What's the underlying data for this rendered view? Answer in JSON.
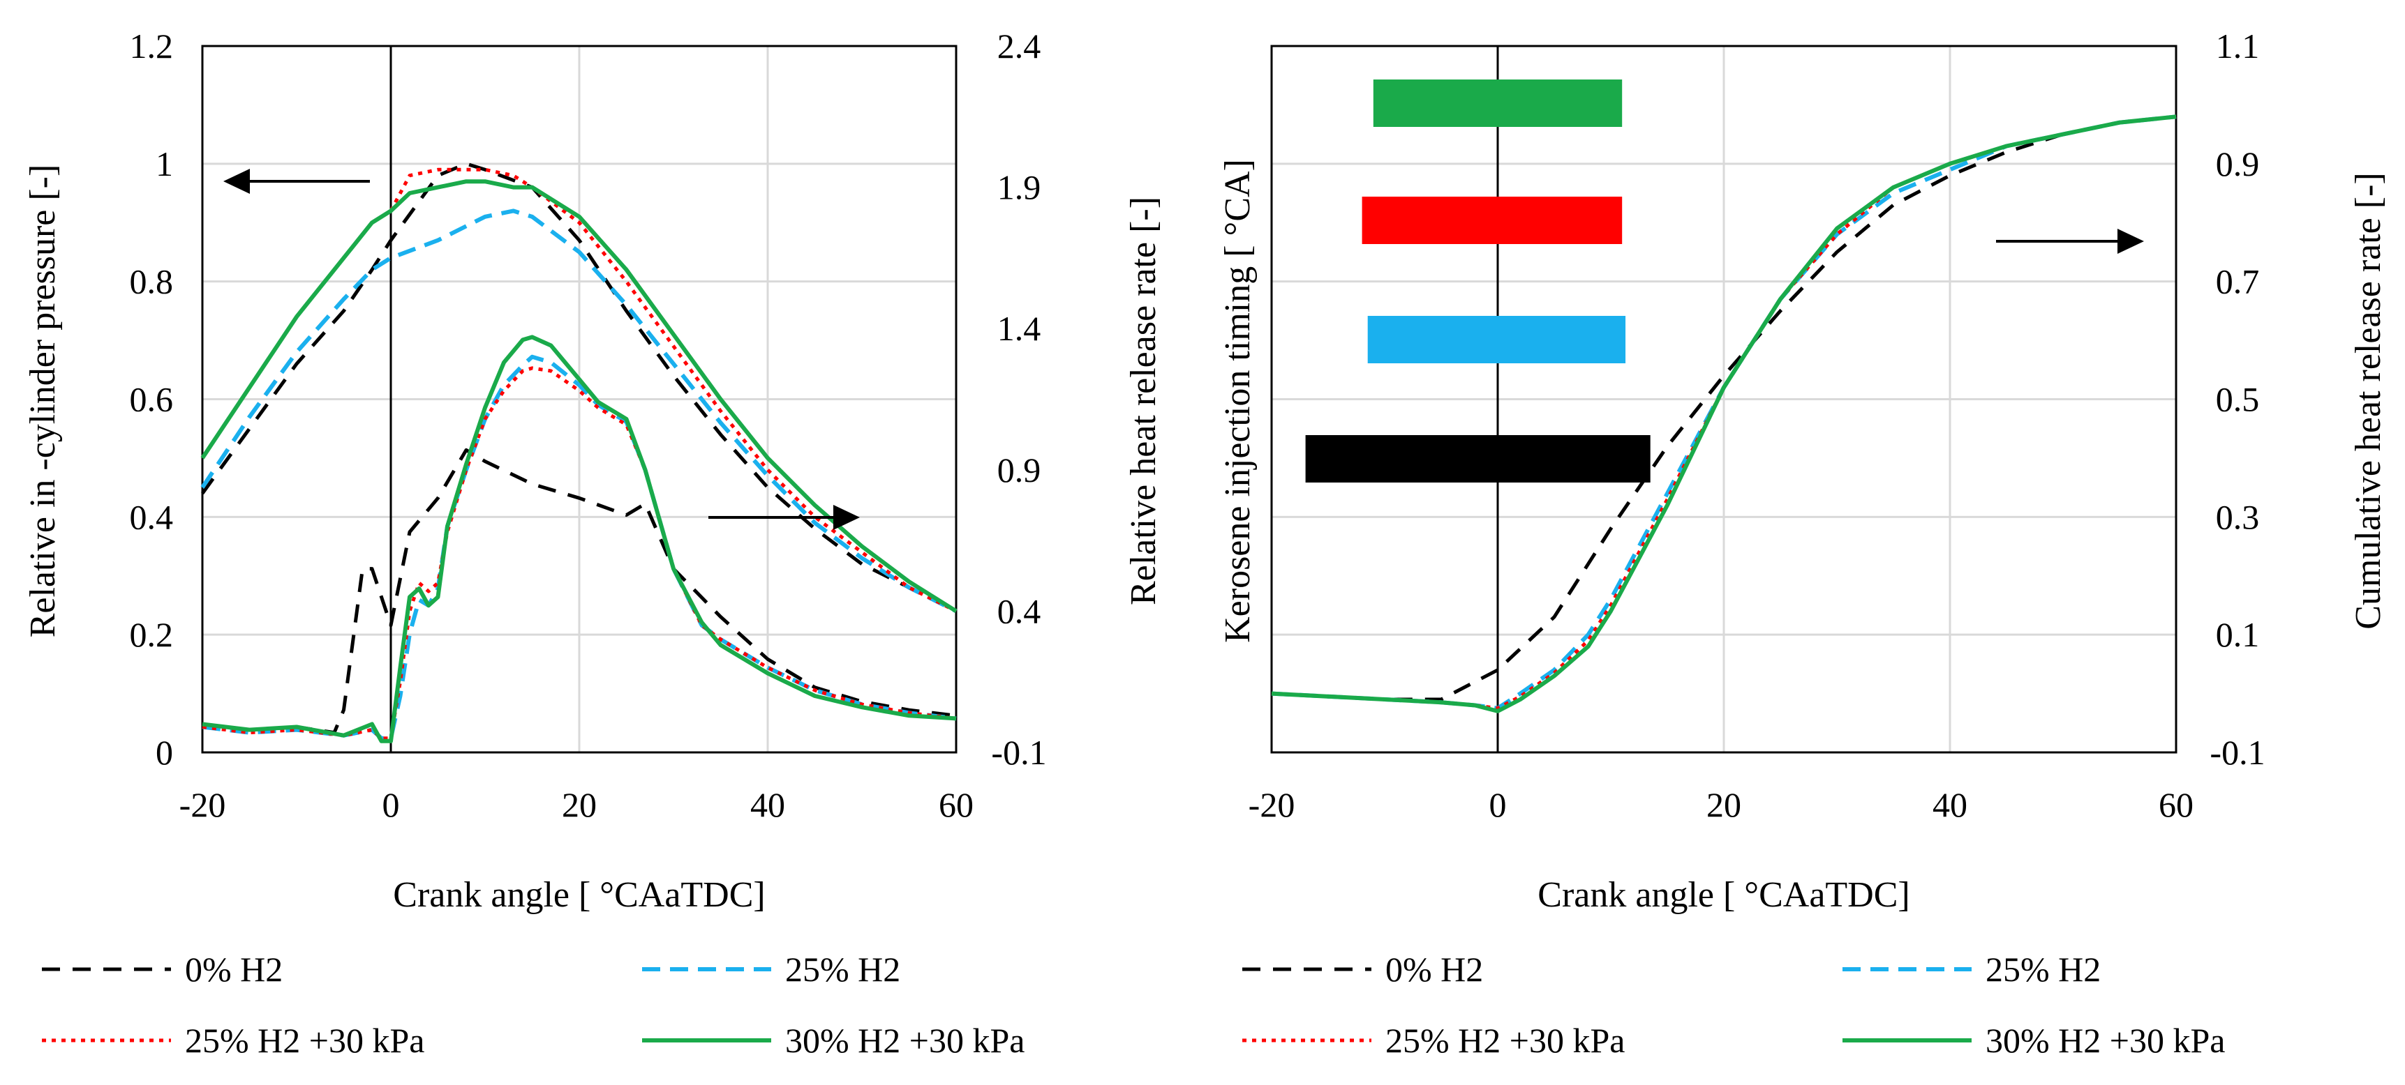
{
  "series_styles": [
    {
      "key": "h0",
      "color": "#000000",
      "dash": "26,18",
      "width": 5
    },
    {
      "key": "h25",
      "color": "#1ab0ee",
      "dash": "26,14",
      "width": 6
    },
    {
      "key": "h25p",
      "color": "#ff0000",
      "dash": "6,8",
      "width": 5
    },
    {
      "key": "h30p",
      "color": "#1aaa4a",
      "dash": "",
      "width": 6
    }
  ],
  "chart_data": [
    {
      "type": "line",
      "title": "",
      "xlabel": "Crank angle [ °CAaTDC]",
      "ylabel": "Relative in -cylinder pressure [-]",
      "y2label": "Relative heat release rate [-]",
      "xlim": [
        -20,
        60
      ],
      "ylim": [
        0,
        1.2
      ],
      "y2lim": [
        -0.1,
        2.4
      ],
      "x_ticks": [
        "-20",
        "0",
        "20",
        "40",
        "60"
      ],
      "y_ticks": [
        "0",
        "0.2",
        "0.4",
        "0.6",
        "0.8",
        "1",
        "1.2"
      ],
      "y2_ticks": [
        "-0.1",
        "0.4",
        "0.9",
        "1.4",
        "1.9",
        "2.4"
      ],
      "grid": true,
      "annotations": [
        "arrow pointing left to primary axis (pressure)",
        "arrow pointing right to secondary axis (heat release rate)"
      ],
      "legend": [
        {
          "label": "0% H2",
          "style": "h0"
        },
        {
          "label": "25% H2",
          "style": "h25"
        },
        {
          "label": "25% H2 +30 kPa",
          "style": "h25p"
        },
        {
          "label": "30% H2 +30 kPa",
          "style": "h30p"
        }
      ],
      "series": [
        {
          "name": "0% H2 pressure",
          "style": "h0",
          "axis": "left",
          "x": [
            -20,
            -15,
            -10,
            -5,
            -2,
            0,
            5,
            8,
            10,
            15,
            20,
            25,
            30,
            35,
            40,
            45,
            50,
            55,
            60
          ],
          "y": [
            0.44,
            0.55,
            0.66,
            0.75,
            0.82,
            0.87,
            0.98,
            1.0,
            0.99,
            0.96,
            0.87,
            0.75,
            0.64,
            0.54,
            0.45,
            0.38,
            0.32,
            0.28,
            0.24
          ]
        },
        {
          "name": "25% H2 pressure",
          "style": "h25",
          "axis": "left",
          "x": [
            -20,
            -15,
            -10,
            -5,
            -2,
            0,
            5,
            10,
            13,
            15,
            20,
            25,
            30,
            35,
            40,
            45,
            50,
            55,
            60
          ],
          "y": [
            0.45,
            0.57,
            0.68,
            0.77,
            0.82,
            0.84,
            0.87,
            0.91,
            0.92,
            0.91,
            0.85,
            0.76,
            0.66,
            0.56,
            0.47,
            0.39,
            0.33,
            0.28,
            0.24
          ]
        },
        {
          "name": "25% H2 +30 kPa pressure",
          "style": "h25p",
          "axis": "left",
          "x": [
            -20,
            -15,
            -10,
            -5,
            -2,
            0,
            2,
            5,
            10,
            13,
            15,
            20,
            25,
            30,
            35,
            40,
            45,
            50,
            55,
            60
          ],
          "y": [
            0.5,
            0.62,
            0.74,
            0.84,
            0.9,
            0.92,
            0.98,
            0.99,
            0.99,
            0.98,
            0.96,
            0.9,
            0.8,
            0.69,
            0.58,
            0.48,
            0.4,
            0.34,
            0.28,
            0.24
          ]
        },
        {
          "name": "30% H2 +30 kPa pressure",
          "style": "h30p",
          "axis": "left",
          "x": [
            -20,
            -15,
            -10,
            -5,
            -2,
            0,
            2,
            5,
            8,
            10,
            13,
            15,
            20,
            25,
            30,
            35,
            40,
            45,
            50,
            55,
            60
          ],
          "y": [
            0.5,
            0.62,
            0.74,
            0.84,
            0.9,
            0.92,
            0.95,
            0.96,
            0.97,
            0.97,
            0.96,
            0.96,
            0.91,
            0.82,
            0.71,
            0.6,
            0.5,
            0.42,
            0.35,
            0.29,
            0.24
          ]
        },
        {
          "name": "0% H2 HRR",
          "style": "h0",
          "axis": "right",
          "x": [
            -20,
            -15,
            -10,
            -6,
            -5,
            -3,
            -2,
            -1,
            0,
            2,
            5,
            8,
            10,
            15,
            20,
            25,
            27,
            30,
            35,
            40,
            45,
            50,
            55,
            60
          ],
          "y": [
            0.0,
            -0.02,
            -0.01,
            -0.03,
            0.05,
            0.55,
            0.55,
            0.45,
            0.35,
            0.68,
            0.8,
            0.97,
            0.93,
            0.85,
            0.8,
            0.74,
            0.78,
            0.55,
            0.38,
            0.23,
            0.13,
            0.08,
            0.05,
            0.03
          ]
        },
        {
          "name": "25% H2 HRR",
          "style": "h25",
          "axis": "right",
          "x": [
            -20,
            -15,
            -10,
            -5,
            -2,
            -1,
            0,
            1,
            2,
            3,
            4,
            5,
            6,
            8,
            10,
            12,
            14,
            15,
            17,
            20,
            22,
            25,
            27,
            30,
            33,
            35,
            40,
            45,
            50,
            55,
            60
          ],
          "y": [
            -0.01,
            -0.03,
            -0.02,
            -0.04,
            -0.02,
            -0.05,
            -0.05,
            0.1,
            0.32,
            0.44,
            0.42,
            0.48,
            0.7,
            0.9,
            1.08,
            1.2,
            1.27,
            1.3,
            1.28,
            1.2,
            1.13,
            1.07,
            0.9,
            0.55,
            0.35,
            0.3,
            0.2,
            0.12,
            0.07,
            0.04,
            0.02
          ]
        },
        {
          "name": "25% H2 +30 kPa HRR",
          "style": "h25p",
          "axis": "right",
          "x": [
            -20,
            -15,
            -10,
            -5,
            -2,
            -1,
            0,
            1,
            2,
            3,
            4,
            5,
            6,
            8,
            10,
            12,
            14,
            15,
            17,
            20,
            22,
            25,
            27,
            30,
            33,
            35,
            40,
            45,
            50,
            55,
            60
          ],
          "y": [
            -0.01,
            -0.03,
            -0.02,
            -0.04,
            -0.02,
            -0.05,
            -0.05,
            0.15,
            0.4,
            0.5,
            0.47,
            0.5,
            0.68,
            0.9,
            1.08,
            1.18,
            1.25,
            1.26,
            1.25,
            1.18,
            1.12,
            1.06,
            0.9,
            0.55,
            0.35,
            0.3,
            0.2,
            0.12,
            0.07,
            0.04,
            0.02
          ]
        },
        {
          "name": "30% H2 +30 kPa HRR",
          "style": "h30p",
          "axis": "right",
          "x": [
            -20,
            -15,
            -10,
            -5,
            -2,
            -1,
            0,
            1,
            2,
            3,
            4,
            5,
            6,
            8,
            10,
            12,
            14,
            15,
            17,
            20,
            22,
            25,
            27,
            30,
            33,
            35,
            40,
            45,
            50,
            55,
            60
          ],
          "y": [
            0.0,
            -0.02,
            -0.01,
            -0.04,
            0.0,
            -0.06,
            -0.06,
            0.2,
            0.45,
            0.48,
            0.42,
            0.45,
            0.7,
            0.92,
            1.12,
            1.28,
            1.36,
            1.37,
            1.34,
            1.22,
            1.14,
            1.08,
            0.9,
            0.55,
            0.36,
            0.28,
            0.18,
            0.1,
            0.06,
            0.03,
            0.02
          ]
        }
      ]
    },
    {
      "type": "line",
      "title": "",
      "xlabel": "Crank angle [ °CAaTDC]",
      "ylabel": "Kerosene injection timing [ °CA]",
      "y2label": "Cumulative heat release rate [-]",
      "xlim": [
        -20,
        60
      ],
      "y2lim": [
        -0.1,
        1.1
      ],
      "x_ticks": [
        "-20",
        "0",
        "20",
        "40",
        "60"
      ],
      "y2_ticks": [
        "-0.1",
        "0.1",
        "0.3",
        "0.5",
        "0.7",
        "0.9",
        "1.1"
      ],
      "grid": true,
      "annotations": [
        "arrow pointing right to secondary axis (cumulative heat release rate)"
      ],
      "injection_bars": [
        {
          "style": "h30p",
          "start": -11,
          "end": 11
        },
        {
          "style": "h25p",
          "start": -12,
          "end": 11
        },
        {
          "style": "h25",
          "start": -11.5,
          "end": 11.3
        },
        {
          "style": "h0",
          "start": -17,
          "end": 13.5
        }
      ],
      "legend": [
        {
          "label": "0% H2",
          "style": "h0"
        },
        {
          "label": "25% H2",
          "style": "h25"
        },
        {
          "label": "25% H2 +30 kPa",
          "style": "h25p"
        },
        {
          "label": "30% H2 +30 kPa",
          "style": "h30p"
        }
      ],
      "series": [
        {
          "name": "0% H2 cumulative",
          "style": "h0",
          "axis": "right",
          "x": [
            -20,
            -10,
            -5,
            -2,
            0,
            5,
            10,
            15,
            20,
            25,
            30,
            35,
            40,
            45,
            50,
            55,
            60
          ],
          "y": [
            0.0,
            -0.01,
            -0.01,
            0.02,
            0.04,
            0.13,
            0.28,
            0.42,
            0.54,
            0.65,
            0.75,
            0.83,
            0.88,
            0.92,
            0.95,
            0.97,
            0.98
          ]
        },
        {
          "name": "25% H2 cumulative",
          "style": "h25",
          "axis": "right",
          "x": [
            -20,
            -10,
            -5,
            -2,
            0,
            2,
            5,
            8,
            10,
            15,
            20,
            25,
            30,
            35,
            40,
            45,
            50,
            55,
            60
          ],
          "y": [
            0.0,
            -0.01,
            -0.015,
            -0.02,
            -0.025,
            0.0,
            0.04,
            0.1,
            0.16,
            0.34,
            0.52,
            0.67,
            0.78,
            0.85,
            0.89,
            0.93,
            0.95,
            0.97,
            0.98
          ]
        },
        {
          "name": "25% H2 +30 kPa cumulative",
          "style": "h25p",
          "axis": "right",
          "x": [
            -20,
            -10,
            -5,
            -2,
            0,
            2,
            5,
            8,
            10,
            15,
            20,
            25,
            30,
            35,
            40,
            45,
            50,
            55,
            60
          ],
          "y": [
            0.0,
            -0.01,
            -0.015,
            -0.02,
            -0.025,
            -0.005,
            0.035,
            0.09,
            0.15,
            0.33,
            0.52,
            0.67,
            0.78,
            0.86,
            0.9,
            0.93,
            0.95,
            0.97,
            0.98
          ]
        },
        {
          "name": "30% H2 +30 kPa cumulative",
          "style": "h30p",
          "axis": "right",
          "x": [
            -20,
            -10,
            -5,
            -2,
            0,
            2,
            5,
            8,
            10,
            15,
            20,
            25,
            30,
            35,
            40,
            45,
            50,
            55,
            60
          ],
          "y": [
            0.0,
            -0.01,
            -0.015,
            -0.02,
            -0.03,
            -0.01,
            0.03,
            0.08,
            0.14,
            0.32,
            0.52,
            0.67,
            0.79,
            0.86,
            0.9,
            0.93,
            0.95,
            0.97,
            0.98
          ]
        }
      ]
    }
  ]
}
